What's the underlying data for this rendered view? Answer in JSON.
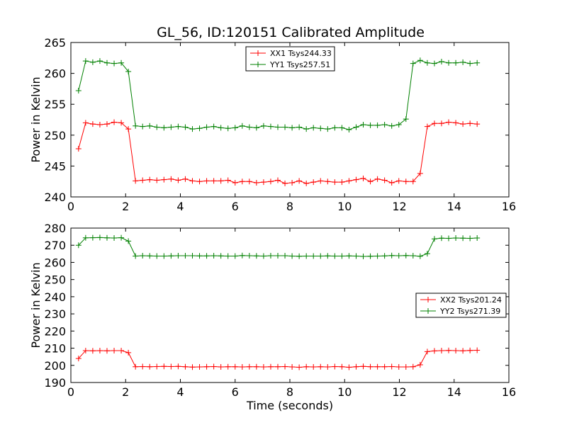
{
  "figure_title": "GL_56, ID:120151 Calibrated Amplitude",
  "chart_data": [
    {
      "type": "line",
      "title": "GL_56, ID:120151 Calibrated Amplitude",
      "xlabel": "",
      "ylabel": "Power in Kelvin",
      "xlim": [
        0,
        16
      ],
      "ylim": [
        240,
        265
      ],
      "xticks": [
        0,
        2,
        4,
        6,
        8,
        10,
        12,
        14,
        16
      ],
      "yticks": [
        240,
        245,
        250,
        255,
        260,
        265
      ],
      "marker": "+",
      "legend_position": "upper-center",
      "x": [
        0.28,
        0.54,
        0.8,
        1.06,
        1.32,
        1.58,
        1.84,
        2.1,
        2.36,
        2.62,
        2.88,
        3.14,
        3.4,
        3.66,
        3.92,
        4.18,
        4.44,
        4.7,
        4.96,
        5.22,
        5.48,
        5.74,
        6.0,
        6.26,
        6.52,
        6.78,
        7.04,
        7.3,
        7.56,
        7.82,
        8.08,
        8.34,
        8.6,
        8.86,
        9.12,
        9.38,
        9.64,
        9.9,
        10.16,
        10.42,
        10.68,
        10.94,
        11.2,
        11.46,
        11.72,
        11.98,
        12.24,
        12.5,
        12.76,
        13.02,
        13.28,
        13.54,
        13.8,
        14.06,
        14.32,
        14.58,
        14.84
      ],
      "series": [
        {
          "name": "XX1 Tsys244.33",
          "color": "#ff0000",
          "values": [
            247.8,
            252.0,
            251.8,
            251.7,
            251.8,
            252.1,
            252.0,
            251.0,
            242.6,
            242.7,
            242.8,
            242.7,
            242.8,
            242.9,
            242.7,
            242.9,
            242.6,
            242.5,
            242.6,
            242.6,
            242.6,
            242.7,
            242.3,
            242.5,
            242.5,
            242.3,
            242.4,
            242.5,
            242.7,
            242.2,
            242.3,
            242.6,
            242.2,
            242.4,
            242.6,
            242.5,
            242.4,
            242.4,
            242.6,
            242.8,
            243.0,
            242.5,
            242.9,
            242.7,
            242.3,
            242.6,
            242.5,
            242.5,
            243.8,
            251.4,
            251.9,
            251.9,
            252.1,
            252.0,
            251.8,
            251.9,
            251.8
          ]
        },
        {
          "name": "YY1 Tsys257.51",
          "color": "#008000",
          "values": [
            257.2,
            262.0,
            261.8,
            262.0,
            261.7,
            261.6,
            261.7,
            260.3,
            251.5,
            251.4,
            251.5,
            251.3,
            251.2,
            251.3,
            251.4,
            251.3,
            251.0,
            251.1,
            251.3,
            251.4,
            251.2,
            251.1,
            251.2,
            251.5,
            251.3,
            251.2,
            251.5,
            251.4,
            251.3,
            251.3,
            251.2,
            251.3,
            251.0,
            251.2,
            251.1,
            251.0,
            251.2,
            251.2,
            250.9,
            251.3,
            251.7,
            251.6,
            251.6,
            251.7,
            251.5,
            251.7,
            252.6,
            261.6,
            262.1,
            261.7,
            261.6,
            261.9,
            261.7,
            261.7,
            261.8,
            261.6,
            261.7
          ]
        }
      ]
    },
    {
      "type": "line",
      "title": "",
      "xlabel": "Time (seconds)",
      "ylabel": "Power in Kelvin",
      "xlim": [
        0,
        16
      ],
      "ylim": [
        190,
        280
      ],
      "xticks": [
        0,
        2,
        4,
        6,
        8,
        10,
        12,
        14,
        16
      ],
      "yticks": [
        190,
        200,
        210,
        220,
        230,
        240,
        250,
        260,
        270,
        280
      ],
      "marker": "+",
      "legend_position": "center-right",
      "x": [
        0.28,
        0.54,
        0.8,
        1.06,
        1.32,
        1.58,
        1.84,
        2.1,
        2.36,
        2.62,
        2.88,
        3.14,
        3.4,
        3.66,
        3.92,
        4.18,
        4.44,
        4.7,
        4.96,
        5.22,
        5.48,
        5.74,
        6.0,
        6.26,
        6.52,
        6.78,
        7.04,
        7.3,
        7.56,
        7.82,
        8.08,
        8.34,
        8.6,
        8.86,
        9.12,
        9.38,
        9.64,
        9.9,
        10.16,
        10.42,
        10.68,
        10.94,
        11.2,
        11.46,
        11.72,
        11.98,
        12.24,
        12.5,
        12.76,
        13.02,
        13.28,
        13.54,
        13.8,
        14.06,
        14.32,
        14.58,
        14.84
      ],
      "series": [
        {
          "name": "XX2 Tsys201.24",
          "color": "#ff0000",
          "values": [
            204.0,
            208.6,
            208.5,
            208.6,
            208.5,
            208.6,
            208.6,
            207.4,
            199.2,
            199.3,
            199.2,
            199.3,
            199.4,
            199.3,
            199.4,
            199.2,
            199.0,
            199.1,
            199.2,
            199.3,
            199.1,
            199.2,
            199.2,
            199.1,
            199.2,
            199.2,
            199.1,
            199.2,
            199.2,
            199.3,
            199.1,
            198.9,
            199.2,
            199.1,
            199.2,
            199.1,
            199.3,
            199.2,
            198.9,
            199.2,
            199.4,
            199.2,
            199.2,
            199.2,
            199.3,
            199.1,
            199.1,
            199.2,
            200.3,
            208.0,
            208.4,
            208.6,
            208.7,
            208.6,
            208.5,
            208.7,
            208.8
          ]
        },
        {
          "name": "YY2 Tsys271.39",
          "color": "#008000",
          "values": [
            270.0,
            274.3,
            274.4,
            274.5,
            274.3,
            274.2,
            274.4,
            272.4,
            263.7,
            263.9,
            263.8,
            263.7,
            263.7,
            263.8,
            263.9,
            263.9,
            263.9,
            263.8,
            263.8,
            263.9,
            263.8,
            263.7,
            263.7,
            264.0,
            263.9,
            263.8,
            263.7,
            263.9,
            263.9,
            263.9,
            263.7,
            263.6,
            263.7,
            263.7,
            263.7,
            263.8,
            263.7,
            263.7,
            263.8,
            263.7,
            263.5,
            263.6,
            263.7,
            263.8,
            264.0,
            263.9,
            264.0,
            263.9,
            263.6,
            265.1,
            273.7,
            274.1,
            274.0,
            274.2,
            274.1,
            274.0,
            274.2
          ]
        }
      ]
    }
  ]
}
